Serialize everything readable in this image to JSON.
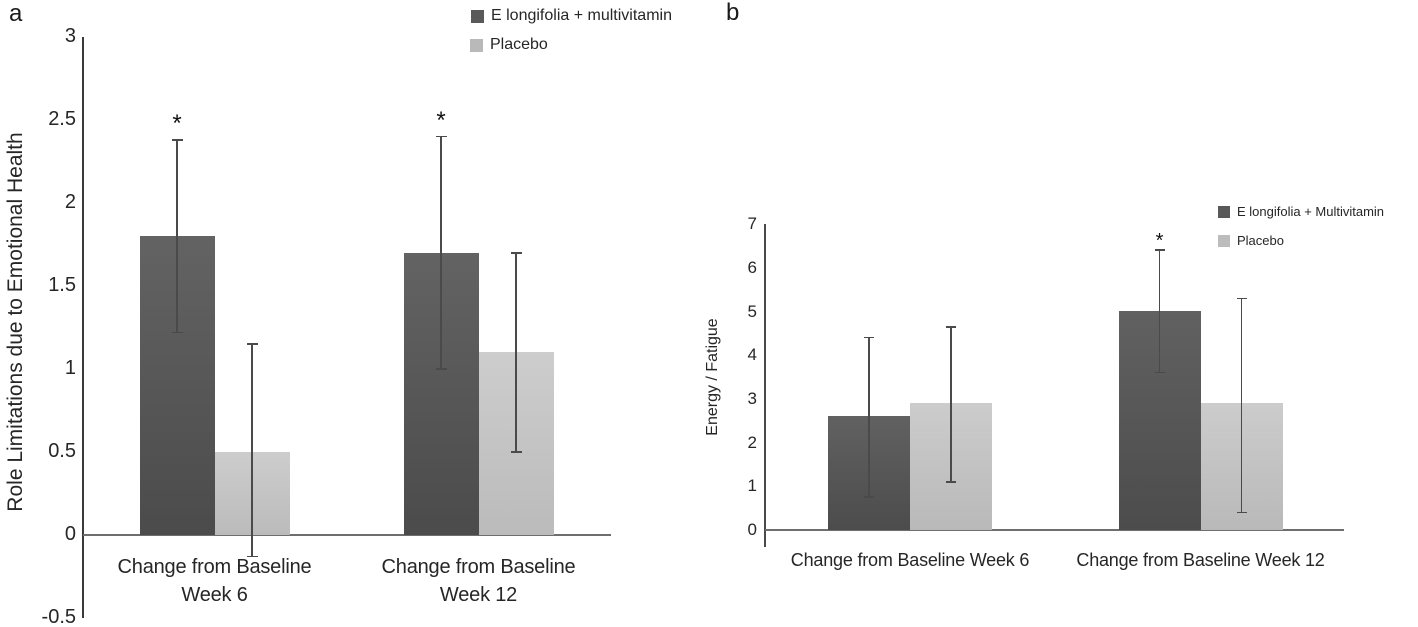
{
  "figure": {
    "panel_labels": [
      "a",
      "b"
    ],
    "background_color": "#ffffff",
    "text_color": "#262626",
    "axis_line_color_horizontal": "#6e6e6e",
    "error_bar_color": "#4a4a4a",
    "significance_marker": "*"
  },
  "chart_data": [
    {
      "type": "bar",
      "panel": "a",
      "title": "",
      "xlabel": "",
      "ylabel": "Role Limitations due to Emotional Health",
      "ylim": [
        -0.5,
        3
      ],
      "ytick_step": 0.5,
      "yticks": [
        3,
        2.5,
        2,
        1.5,
        1,
        0.5,
        0,
        -0.5
      ],
      "categories": [
        "Change from Baseline\nWeek 6",
        "Change from Baseline\nWeek 12"
      ],
      "grid": false,
      "legend_position": "top",
      "significance_marker": "*",
      "series": [
        {
          "name": "E longifolia + multivitamin",
          "color": "#595959",
          "color_top": "#636363",
          "color_bottom": "#4b4b4b",
          "values": [
            1.8,
            1.7
          ],
          "error_high": [
            2.38,
            2.4
          ],
          "error_low": [
            1.22,
            1.0
          ],
          "significant": [
            true,
            true
          ]
        },
        {
          "name": "Placebo",
          "color": "#b9b9b9",
          "color_top": "#cdcdcd",
          "color_bottom": "#bbbbbb",
          "values": [
            0.5,
            1.1
          ],
          "error_high": [
            1.15,
            1.7
          ],
          "error_low": [
            -0.13,
            0.5
          ],
          "significant": [
            false,
            false
          ]
        }
      ]
    },
    {
      "type": "bar",
      "panel": "b",
      "title": "",
      "xlabel": "",
      "ylabel": "Energy / Fatigue",
      "ylim": [
        0,
        7
      ],
      "ytick_step": 1,
      "yticks": [
        7,
        6,
        5,
        4,
        3,
        2,
        1,
        0
      ],
      "categories": [
        "Change from Baseline Week 6",
        "Change from Baseline Week 12"
      ],
      "grid": false,
      "legend_position": "top-right",
      "significance_marker": "*",
      "series": [
        {
          "name": "E longifolia + Multivitamin",
          "color": "#595959",
          "color_top": "#616161",
          "color_bottom": "#4c4c4c",
          "values": [
            2.6,
            5.0
          ],
          "error_high": [
            4.4,
            6.4
          ],
          "error_low": [
            0.75,
            3.6
          ],
          "significant": [
            false,
            true
          ]
        },
        {
          "name": "Placebo",
          "color": "#bcbcbc",
          "color_top": "#cccccc",
          "color_bottom": "#b9b9b9",
          "values": [
            2.9,
            2.9
          ],
          "error_high": [
            4.65,
            5.3
          ],
          "error_low": [
            1.1,
            0.4
          ],
          "significant": [
            false,
            false
          ]
        }
      ]
    }
  ]
}
